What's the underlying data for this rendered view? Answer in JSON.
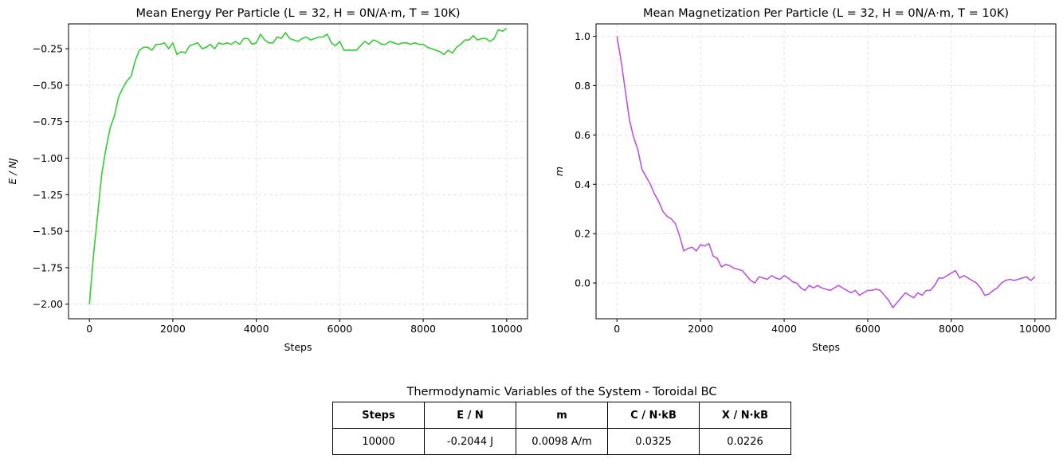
{
  "chart_data": [
    {
      "type": "line",
      "title": "Mean Energy Per Particle (L = 32, H = 0N/A·m, T = 10K)",
      "xlabel": "Steps",
      "ylabel": "E / NJ",
      "xlim": [
        -500,
        10500
      ],
      "ylim": [
        -2.1,
        -0.08
      ],
      "grid": true,
      "color": "#33cc33",
      "xticks": [
        0,
        2000,
        4000,
        6000,
        8000,
        10000
      ],
      "yticks": [
        -2.0,
        -1.75,
        -1.5,
        -1.25,
        -1.0,
        -0.75,
        -0.5,
        -0.25
      ],
      "ytick_labels": [
        "−2.00",
        "−1.75",
        "−1.50",
        "−1.25",
        "−1.00",
        "−0.75",
        "−0.50",
        "−0.25"
      ],
      "series": [
        {
          "x": [
            0,
            100,
            200,
            300,
            400,
            500,
            600,
            700,
            800,
            900,
            1000,
            1100,
            1200,
            1300,
            1400,
            1500,
            1600,
            1700,
            1800,
            1900,
            2000,
            2100,
            2200,
            2300,
            2400,
            2500,
            2600,
            2700,
            2800,
            2900,
            3000,
            3100,
            3200,
            3300,
            3400,
            3500,
            3600,
            3700,
            3800,
            3900,
            4000,
            4100,
            4200,
            4300,
            4400,
            4500,
            4600,
            4700,
            4800,
            4900,
            5000,
            5100,
            5200,
            5300,
            5400,
            5500,
            5600,
            5700,
            5800,
            5900,
            6000,
            6100,
            6200,
            6300,
            6400,
            6500,
            6600,
            6700,
            6800,
            6900,
            7000,
            7100,
            7200,
            7300,
            7400,
            7500,
            7600,
            7700,
            7800,
            7900,
            8000,
            8100,
            8200,
            8300,
            8400,
            8500,
            8600,
            8700,
            8800,
            8900,
            9000,
            9100,
            9200,
            9300,
            9400,
            9500,
            9600,
            9700,
            9800,
            9900,
            10000
          ],
          "values": [
            -2.0,
            -1.66,
            -1.38,
            -1.1,
            -0.93,
            -0.79,
            -0.71,
            -0.58,
            -0.52,
            -0.47,
            -0.44,
            -0.33,
            -0.26,
            -0.24,
            -0.24,
            -0.26,
            -0.22,
            -0.22,
            -0.21,
            -0.25,
            -0.21,
            -0.29,
            -0.27,
            -0.28,
            -0.23,
            -0.22,
            -0.21,
            -0.25,
            -0.24,
            -0.22,
            -0.25,
            -0.21,
            -0.22,
            -0.21,
            -0.22,
            -0.2,
            -0.22,
            -0.18,
            -0.18,
            -0.22,
            -0.21,
            -0.15,
            -0.19,
            -0.21,
            -0.21,
            -0.17,
            -0.18,
            -0.14,
            -0.18,
            -0.19,
            -0.2,
            -0.18,
            -0.17,
            -0.19,
            -0.18,
            -0.17,
            -0.17,
            -0.15,
            -0.21,
            -0.23,
            -0.2,
            -0.26,
            -0.26,
            -0.26,
            -0.26,
            -0.23,
            -0.2,
            -0.22,
            -0.19,
            -0.2,
            -0.22,
            -0.22,
            -0.2,
            -0.21,
            -0.22,
            -0.21,
            -0.21,
            -0.22,
            -0.21,
            -0.22,
            -0.22,
            -0.24,
            -0.25,
            -0.26,
            -0.27,
            -0.29,
            -0.26,
            -0.28,
            -0.24,
            -0.22,
            -0.19,
            -0.19,
            -0.16,
            -0.19,
            -0.18,
            -0.18,
            -0.2,
            -0.18,
            -0.12,
            -0.13,
            -0.11
          ]
        }
      ]
    },
    {
      "type": "line",
      "title": "Mean Magnetization Per Particle (L = 32, H = 0N/A·m, T = 10K)",
      "xlabel": "Steps",
      "ylabel": "m",
      "xlim": [
        -500,
        10500
      ],
      "ylim": [
        -0.145,
        1.05
      ],
      "grid": true,
      "color": "#bb55dd",
      "xticks": [
        0,
        2000,
        4000,
        6000,
        8000,
        10000
      ],
      "yticks": [
        0.0,
        0.2,
        0.4,
        0.6,
        0.8,
        1.0
      ],
      "ytick_labels": [
        "0.0",
        "0.2",
        "0.4",
        "0.6",
        "0.8",
        "1.0"
      ],
      "series": [
        {
          "x": [
            0,
            100,
            200,
            300,
            400,
            500,
            600,
            700,
            800,
            900,
            1000,
            1100,
            1200,
            1300,
            1400,
            1500,
            1600,
            1700,
            1800,
            1900,
            2000,
            2100,
            2200,
            2300,
            2400,
            2500,
            2600,
            2700,
            2800,
            2900,
            3000,
            3100,
            3200,
            3300,
            3400,
            3500,
            3600,
            3700,
            3800,
            3900,
            4000,
            4100,
            4200,
            4300,
            4400,
            4500,
            4600,
            4700,
            4800,
            4900,
            5000,
            5100,
            5200,
            5300,
            5400,
            5500,
            5600,
            5700,
            5800,
            5900,
            6000,
            6100,
            6200,
            6300,
            6400,
            6500,
            6600,
            6700,
            6800,
            6900,
            7000,
            7100,
            7200,
            7300,
            7400,
            7500,
            7600,
            7700,
            7800,
            7900,
            8000,
            8100,
            8200,
            8300,
            8400,
            8500,
            8600,
            8700,
            8800,
            8900,
            9000,
            9100,
            9200,
            9300,
            9400,
            9500,
            9600,
            9700,
            9800,
            9900,
            10000
          ],
          "values": [
            1.0,
            0.9,
            0.78,
            0.66,
            0.59,
            0.54,
            0.46,
            0.43,
            0.4,
            0.36,
            0.33,
            0.29,
            0.27,
            0.26,
            0.24,
            0.19,
            0.13,
            0.14,
            0.145,
            0.13,
            0.155,
            0.15,
            0.16,
            0.11,
            0.1,
            0.065,
            0.075,
            0.07,
            0.06,
            0.055,
            0.05,
            0.03,
            0.01,
            0.0,
            0.025,
            0.02,
            0.015,
            0.03,
            0.02,
            0.015,
            0.03,
            0.02,
            0.005,
            0.0,
            -0.02,
            -0.03,
            -0.01,
            -0.02,
            -0.01,
            -0.02,
            -0.025,
            -0.03,
            -0.02,
            -0.01,
            -0.02,
            -0.03,
            -0.04,
            -0.03,
            -0.05,
            -0.04,
            -0.03,
            -0.03,
            -0.025,
            -0.03,
            -0.05,
            -0.07,
            -0.1,
            -0.08,
            -0.06,
            -0.04,
            -0.05,
            -0.06,
            -0.04,
            -0.05,
            -0.03,
            -0.03,
            -0.01,
            0.02,
            0.02,
            0.03,
            0.04,
            0.05,
            0.02,
            0.03,
            0.02,
            0.01,
            0.0,
            -0.02,
            -0.05,
            -0.045,
            -0.03,
            -0.02,
            0.0,
            0.01,
            0.015,
            0.01,
            0.015,
            0.02,
            0.025,
            0.01,
            0.025
          ]
        }
      ]
    }
  ],
  "table": {
    "title": "Thermodynamic Variables of the System - Toroidal BC",
    "headers": [
      "Steps",
      "E / N",
      "m",
      "C / N·kB",
      "X / N·kB"
    ],
    "rows": [
      [
        "10000",
        "-0.2044 J",
        "0.0098 A/m",
        "0.0325",
        "0.0226"
      ]
    ]
  }
}
